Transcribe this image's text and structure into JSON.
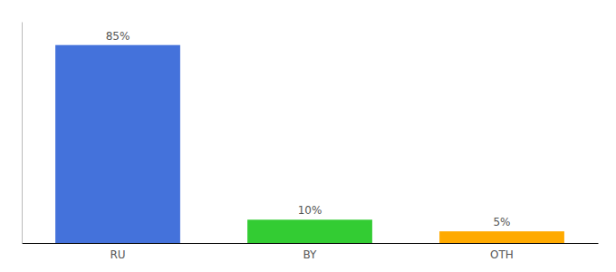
{
  "chart_data": {
    "type": "bar",
    "categories": [
      "RU",
      "BY",
      "OTH"
    ],
    "values": [
      85,
      10,
      5
    ],
    "value_labels": [
      "85%",
      "10%",
      "5%"
    ],
    "colors": [
      "#4472db",
      "#33cc33",
      "#ffaa00"
    ],
    "ylim": [
      0,
      95
    ],
    "data_labels": true,
    "tick_labels": "x",
    "grid": false
  }
}
